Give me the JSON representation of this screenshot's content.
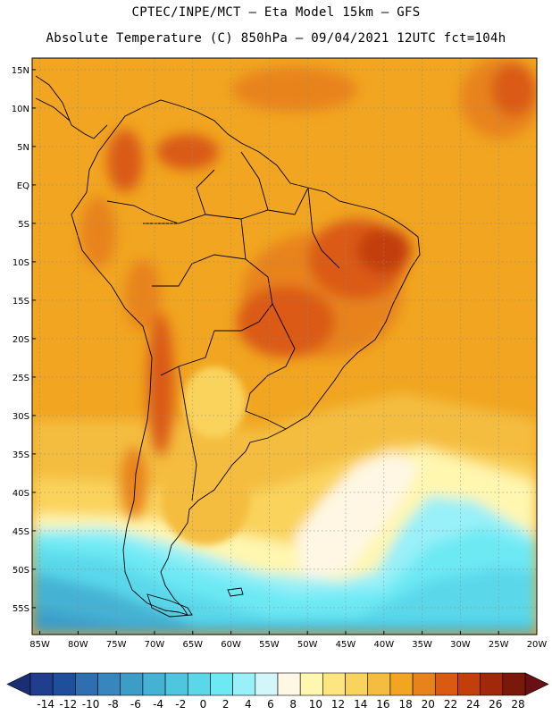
{
  "header": {
    "title_line1": "CPTEC/INPE/MCT –  Eta Model 15km – GFS",
    "title_line2": "Absolute Temperature (C) 850hPa – 09/04/2021 12UTC fct=104h"
  },
  "map": {
    "lat_labels": [
      "15N",
      "10N",
      "5N",
      "EQ",
      "5S",
      "10S",
      "15S",
      "20S",
      "25S",
      "30S",
      "35S",
      "40S",
      "45S",
      "50S",
      "55S"
    ],
    "lat_values": [
      15,
      10,
      5,
      0,
      -5,
      -10,
      -15,
      -20,
      -25,
      -30,
      -35,
      -40,
      -45,
      -50,
      -55
    ],
    "lon_labels": [
      "85W",
      "80W",
      "75W",
      "70W",
      "65W",
      "60W",
      "55W",
      "50W",
      "45W",
      "40W",
      "35W",
      "30W",
      "25W",
      "20W"
    ],
    "lon_values": [
      -85,
      -80,
      -75,
      -70,
      -65,
      -60,
      -55,
      -50,
      -45,
      -40,
      -35,
      -30,
      -25,
      -20
    ],
    "lon_range": [
      -86,
      -20
    ],
    "lat_range": [
      -58.5,
      16.5
    ],
    "grid": "dotted"
  },
  "colorbar": {
    "labels": [
      "-14",
      "-12",
      "-10",
      "-8",
      "-6",
      "-4",
      "-2",
      "0",
      "2",
      "4",
      "6",
      "8",
      "10",
      "12",
      "14",
      "16",
      "18",
      "20",
      "22",
      "24",
      "26",
      "28"
    ],
    "colors": [
      "#1f3e8e",
      "#1f4f9a",
      "#2f6fb0",
      "#3787be",
      "#3d9dc7",
      "#45b2d4",
      "#4fc6df",
      "#5ad8ea",
      "#6de9f4",
      "#99f0f8",
      "#d3f6fa",
      "#fff7e4",
      "#fff6b0",
      "#fde681",
      "#fad35c",
      "#f4bd40",
      "#f1a520",
      "#e8831c",
      "#da5a12",
      "#c33e0a",
      "#a1280a",
      "#7a180a"
    ],
    "end_low_color": "#1a2f73",
    "end_high_color": "#6a0f14"
  }
}
